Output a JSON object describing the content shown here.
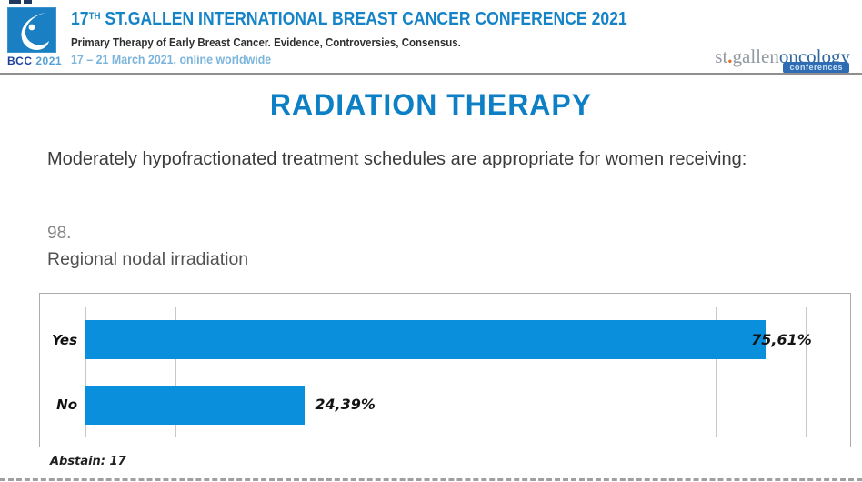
{
  "colors": {
    "bar_blue": "#0a8fdc",
    "title_blue": "#0d7fc5",
    "header_blue": "#1583c8",
    "dates_blue": "#7cb5dc"
  },
  "header": {
    "logo": {
      "acronym": "BCC",
      "year": "2021"
    },
    "conference_number": "17",
    "conference_ordinal": "TH",
    "conference_title": " ST.GALLEN INTERNATIONAL BREAST CANCER CONFERENCE 2021",
    "subtitle": "Primary Therapy of Early Breast Cancer. Evidence, Controversies, Consensus.",
    "dates": "17 – 21 March 2021, online worldwide",
    "org_logo": {
      "part1": "st",
      "dot": ".",
      "part2": "gallen",
      "part3": "oncology",
      "badge": "conferences"
    }
  },
  "main": {
    "section_title": "RADIATION THERAPY",
    "question": "Moderately hypofractionated treatment schedules are appropriate for women receiving:",
    "item_number": "98.",
    "item_text": "Regional nodal irradiation",
    "abstain_note": "Abstain: 17"
  },
  "chart_data": {
    "type": "bar",
    "orientation": "horizontal",
    "title": "",
    "categories": [
      "Yes",
      "No"
    ],
    "values": [
      75.61,
      24.39
    ],
    "value_labels": [
      "75,61%",
      "24,39%"
    ],
    "xlim": [
      0,
      85
    ],
    "gridline_step": 10,
    "grid": true,
    "legend": false,
    "bar_color": "#0a8fdc"
  }
}
